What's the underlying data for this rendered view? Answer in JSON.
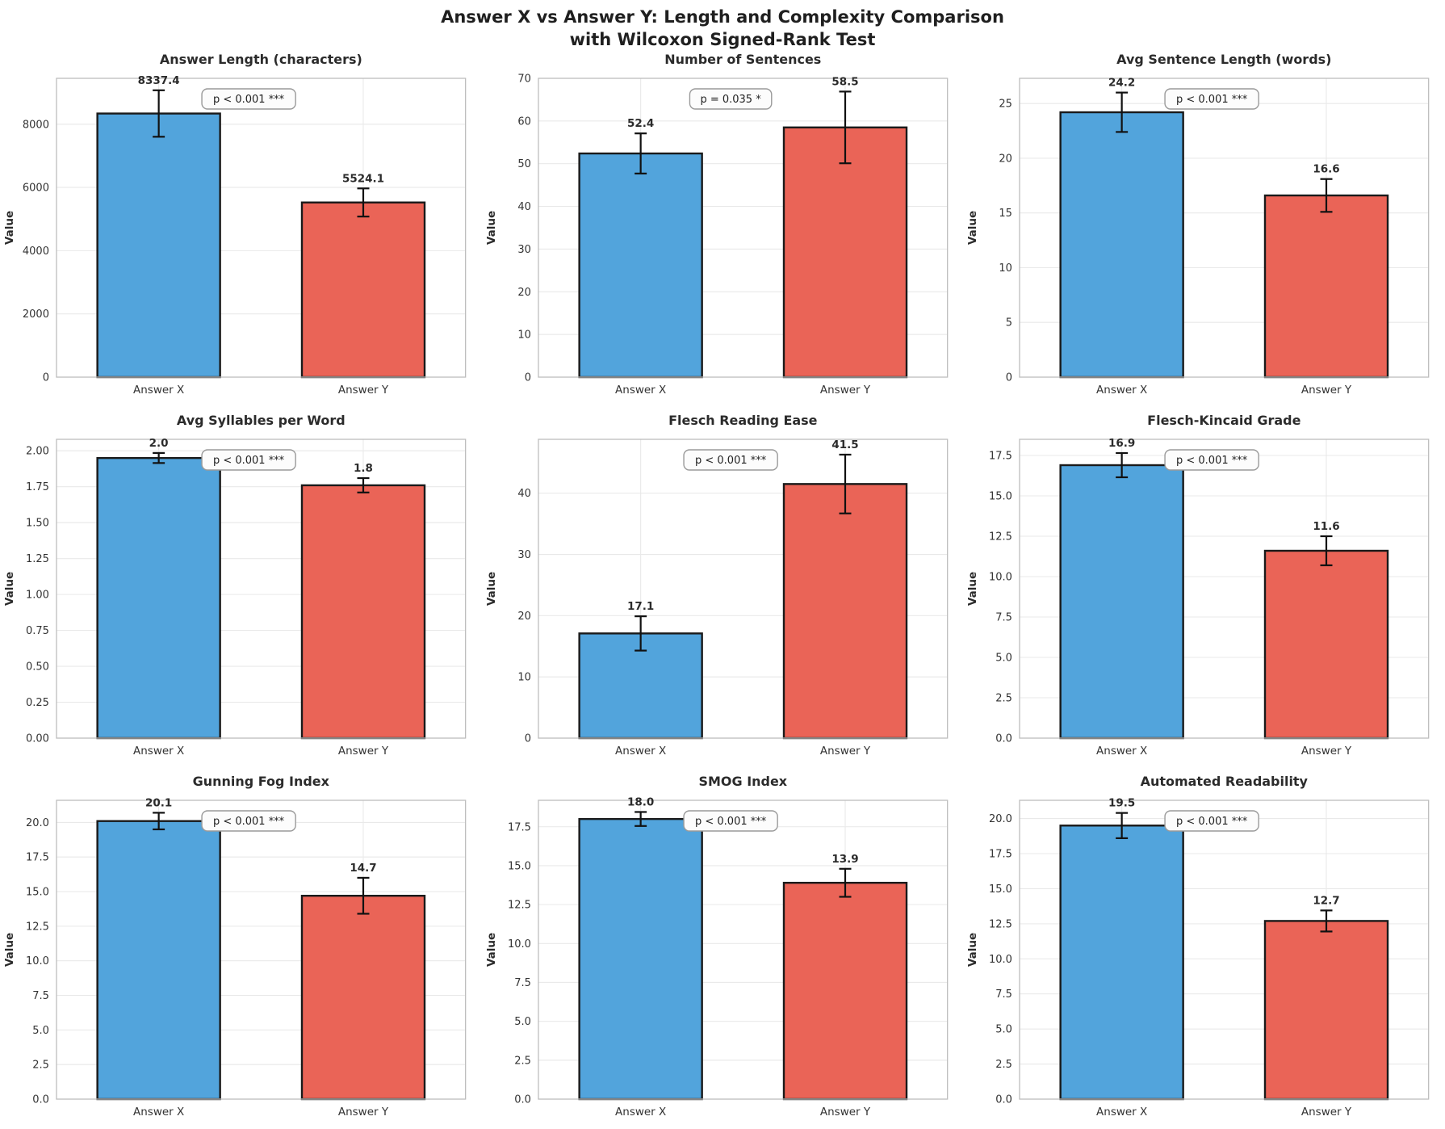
{
  "figure": {
    "title_line1": "Answer X vs Answer Y: Length and Complexity Comparison",
    "title_line2": "with Wilcoxon Signed-Rank Test"
  },
  "colors": {
    "answer_x_bar": "#52A4DC",
    "answer_y_bar": "#EA6457",
    "bar_edge": "#1a1a1a",
    "error_bar": "#111111",
    "grid_line": "#e9e9e9",
    "spine": "#bdbdbd",
    "tick_text": "#333333",
    "title_text": "#2b2b2b",
    "pbox_bg": "#fcfcfc",
    "pbox_border": "#9a9a9a",
    "pbox_text": "#222222"
  },
  "chart_data": [
    {
      "type": "bar",
      "title": "Answer Length (characters)",
      "ylabel": "Value",
      "categories": [
        "Answer X",
        "Answer Y"
      ],
      "values": [
        8337.4,
        5524.1
      ],
      "value_labels": [
        "8337.4",
        "5524.1"
      ],
      "errors": [
        735,
        445
      ],
      "p_label": "p < 0.001 ***",
      "ylim": [
        0,
        9450
      ],
      "yticks": [
        0,
        2000,
        4000,
        6000,
        8000
      ],
      "ytick_labels": [
        "0",
        "2000",
        "4000",
        "6000",
        "8000"
      ],
      "grid": true,
      "legend": "none"
    },
    {
      "type": "bar",
      "title": "Number of Sentences",
      "ylabel": "Value",
      "categories": [
        "Answer X",
        "Answer Y"
      ],
      "values": [
        52.4,
        58.5
      ],
      "value_labels": [
        "52.4",
        "58.5"
      ],
      "errors": [
        4.7,
        8.4
      ],
      "p_label": "p = 0.035 *",
      "ylim": [
        0,
        70
      ],
      "yticks": [
        0,
        10,
        20,
        30,
        40,
        50,
        60,
        70
      ],
      "ytick_labels": [
        "0",
        "10",
        "20",
        "30",
        "40",
        "50",
        "60",
        "70"
      ],
      "grid": true,
      "legend": "none"
    },
    {
      "type": "bar",
      "title": "Avg Sentence Length (words)",
      "ylabel": "Value",
      "categories": [
        "Answer X",
        "Answer Y"
      ],
      "values": [
        24.2,
        16.6
      ],
      "value_labels": [
        "24.2",
        "16.6"
      ],
      "errors": [
        1.8,
        1.5
      ],
      "p_label": "p < 0.001 ***",
      "ylim": [
        0,
        27.3
      ],
      "yticks": [
        0,
        5,
        10,
        15,
        20,
        25
      ],
      "ytick_labels": [
        "0",
        "5",
        "10",
        "15",
        "20",
        "25"
      ],
      "grid": true,
      "legend": "none"
    },
    {
      "type": "bar",
      "title": "Avg Syllables per Word",
      "ylabel": "Value",
      "categories": [
        "Answer X",
        "Answer Y"
      ],
      "values": [
        1.95,
        1.76
      ],
      "value_labels": [
        "2.0",
        "1.8"
      ],
      "errors": [
        0.035,
        0.05
      ],
      "p_label": "p < 0.001 ***",
      "ylim": [
        0,
        2.08
      ],
      "yticks": [
        0,
        0.25,
        0.5,
        0.75,
        1.0,
        1.25,
        1.5,
        1.75,
        2.0
      ],
      "ytick_labels": [
        "0.00",
        "0.25",
        "0.50",
        "0.75",
        "1.00",
        "1.25",
        "1.50",
        "1.75",
        "2.00"
      ],
      "grid": true,
      "legend": "none"
    },
    {
      "type": "bar",
      "title": "Flesch Reading Ease",
      "ylabel": "Value",
      "categories": [
        "Answer X",
        "Answer Y"
      ],
      "values": [
        17.1,
        41.5
      ],
      "value_labels": [
        "17.1",
        "41.5"
      ],
      "errors": [
        2.8,
        4.8
      ],
      "p_label": "p < 0.001 ***",
      "ylim": [
        0,
        48.8
      ],
      "yticks": [
        0,
        10,
        20,
        30,
        40
      ],
      "ytick_labels": [
        "0",
        "10",
        "20",
        "30",
        "40"
      ],
      "grid": true,
      "legend": "none"
    },
    {
      "type": "bar",
      "title": "Flesch-Kincaid Grade",
      "ylabel": "Value",
      "categories": [
        "Answer X",
        "Answer Y"
      ],
      "values": [
        16.9,
        11.6
      ],
      "value_labels": [
        "16.9",
        "11.6"
      ],
      "errors": [
        0.75,
        0.9
      ],
      "p_label": "p < 0.001 ***",
      "ylim": [
        0,
        18.5
      ],
      "yticks": [
        0,
        2.5,
        5,
        7.5,
        10,
        12.5,
        15,
        17.5
      ],
      "ytick_labels": [
        "0.0",
        "2.5",
        "5.0",
        "7.5",
        "10.0",
        "12.5",
        "15.0",
        "17.5"
      ],
      "grid": true,
      "legend": "none"
    },
    {
      "type": "bar",
      "title": "Gunning Fog Index",
      "ylabel": "Value",
      "categories": [
        "Answer X",
        "Answer Y"
      ],
      "values": [
        20.1,
        14.7
      ],
      "value_labels": [
        "20.1",
        "14.7"
      ],
      "errors": [
        0.6,
        1.3
      ],
      "p_label": "p < 0.001 ***",
      "ylim": [
        0,
        21.6
      ],
      "yticks": [
        0,
        2.5,
        5,
        7.5,
        10,
        12.5,
        15,
        17.5,
        20
      ],
      "ytick_labels": [
        "0.0",
        "2.5",
        "5.0",
        "7.5",
        "10.0",
        "12.5",
        "15.0",
        "17.5",
        "20.0"
      ],
      "grid": true,
      "legend": "none"
    },
    {
      "type": "bar",
      "title": "SMOG Index",
      "ylabel": "Value",
      "categories": [
        "Answer X",
        "Answer Y"
      ],
      "values": [
        18.0,
        13.9
      ],
      "value_labels": [
        "18.0",
        "13.9"
      ],
      "errors": [
        0.45,
        0.9
      ],
      "p_label": "p < 0.001 ***",
      "ylim": [
        0,
        19.2
      ],
      "yticks": [
        0,
        2.5,
        5,
        7.5,
        10,
        12.5,
        15,
        17.5
      ],
      "ytick_labels": [
        "0.0",
        "2.5",
        "5.0",
        "7.5",
        "10.0",
        "12.5",
        "15.0",
        "17.5"
      ],
      "grid": true,
      "legend": "none"
    },
    {
      "type": "bar",
      "title": "Automated Readability",
      "ylabel": "Value",
      "categories": [
        "Answer X",
        "Answer Y"
      ],
      "values": [
        19.5,
        12.7
      ],
      "value_labels": [
        "19.5",
        "12.7"
      ],
      "errors": [
        0.9,
        0.75
      ],
      "p_label": "p < 0.001 ***",
      "ylim": [
        0,
        21.3
      ],
      "yticks": [
        0,
        2.5,
        5,
        7.5,
        10,
        12.5,
        15,
        17.5,
        20
      ],
      "ytick_labels": [
        "0.0",
        "2.5",
        "5.0",
        "7.5",
        "10.0",
        "12.5",
        "15.0",
        "17.5",
        "20.0"
      ],
      "grid": true,
      "legend": "none"
    }
  ]
}
